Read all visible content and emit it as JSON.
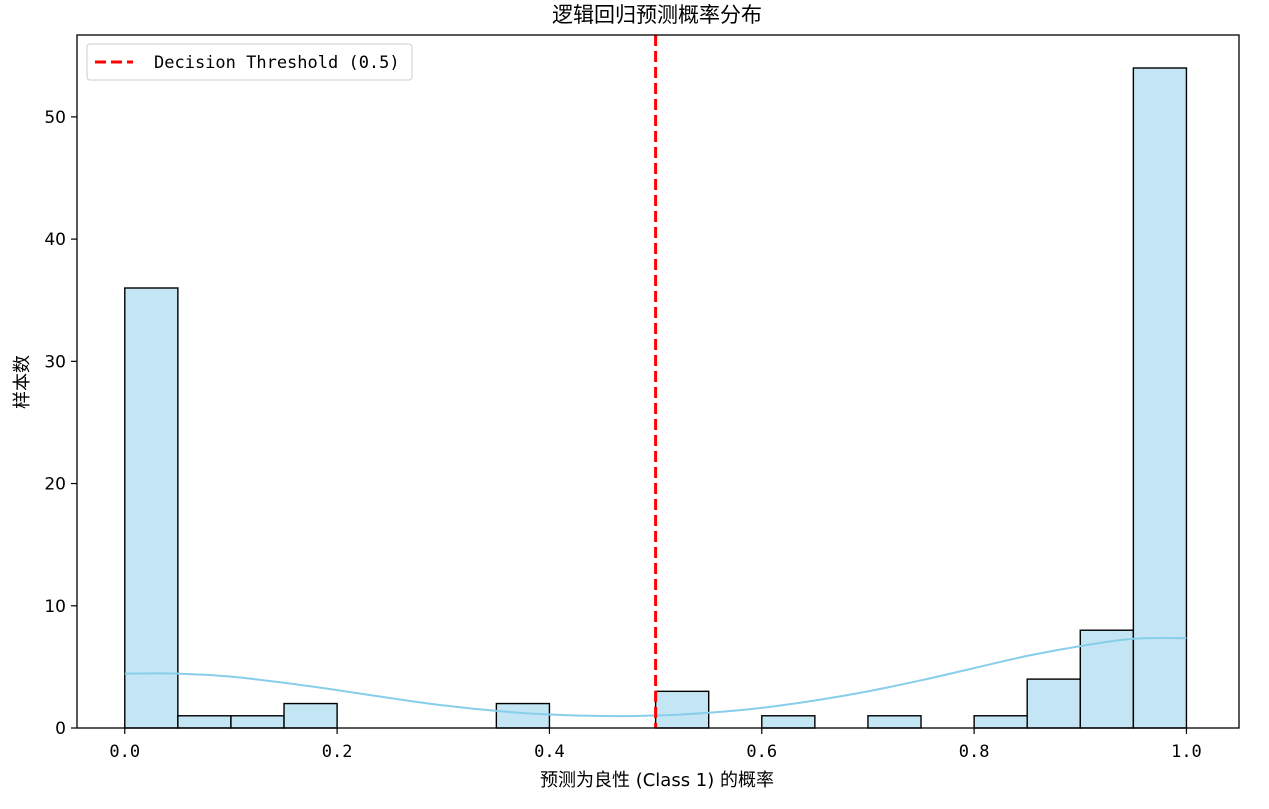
{
  "chart_data": {
    "type": "histogram",
    "title": "逻辑回归预测概率分布",
    "xlabel": "预测为良性 (Class 1) 的概率",
    "ylabel": "样本数",
    "xlim": [
      -0.045,
      1.0495
    ],
    "ylim": [
      0,
      56.7
    ],
    "xticks": [
      0.0,
      0.2,
      0.4,
      0.6,
      0.8,
      1.0
    ],
    "xtick_labels": [
      "0.0",
      "0.2",
      "0.4",
      "0.6",
      "0.8",
      "1.0"
    ],
    "yticks": [
      0,
      10,
      20,
      30,
      40,
      50
    ],
    "ytick_labels": [
      "0",
      "10",
      "20",
      "30",
      "40",
      "50"
    ],
    "bin_edges": [
      0.0,
      0.05,
      0.1,
      0.15,
      0.2,
      0.25,
      0.3,
      0.35,
      0.4,
      0.45,
      0.5,
      0.55,
      0.6,
      0.65,
      0.7,
      0.75,
      0.8,
      0.85,
      0.9,
      0.95,
      1.0
    ],
    "counts": [
      36,
      1,
      1,
      2,
      0,
      0,
      0,
      2,
      0,
      0,
      3,
      0,
      1,
      0,
      1,
      0,
      1,
      4,
      8,
      54
    ],
    "bar_color": "#c4e5f3",
    "bar_edge_color": "#000000",
    "kde_color": "#87ceeb",
    "kde_curve": {
      "x": [
        0.0,
        0.05,
        0.1,
        0.15,
        0.2,
        0.25,
        0.3,
        0.35,
        0.4,
        0.45,
        0.5,
        0.55,
        0.6,
        0.65,
        0.7,
        0.75,
        0.8,
        0.85,
        0.9,
        0.95,
        1.0
      ],
      "y": [
        4.45,
        4.45,
        4.2,
        3.7,
        3.1,
        2.45,
        1.85,
        1.4,
        1.1,
        0.98,
        1.02,
        1.25,
        1.65,
        2.25,
        3.0,
        3.9,
        4.9,
        5.9,
        6.7,
        7.3,
        7.35
      ]
    },
    "threshold": {
      "x": 0.5,
      "label": "Decision Threshold (0.5)",
      "color": "#ff0000",
      "style": "dashed"
    },
    "legend_position": "top-left",
    "grid": false
  }
}
